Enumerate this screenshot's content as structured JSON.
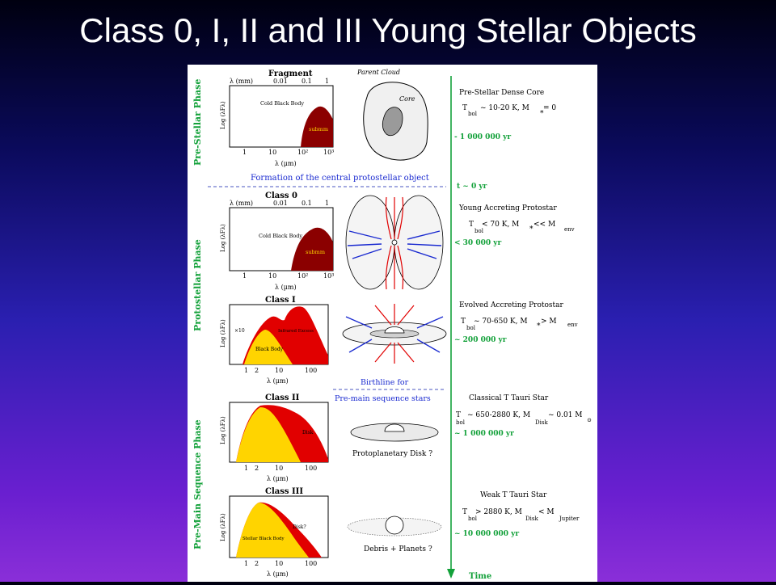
{
  "slide": {
    "title": "Class 0, I, II and III Young Stellar Objects"
  },
  "phases": {
    "pre_stellar": "Pre-Stellar Phase",
    "protostellar": "Protostellar Phase",
    "pre_main_sequence": "Pre-Main Sequence Phase"
  },
  "panels": {
    "fragment": {
      "title": "Fragment",
      "top_axis_label": "λ (mm)",
      "top_ticks": [
        "0.01",
        "0.1",
        "1"
      ],
      "y_label": "Log (λFλ)",
      "x_label": "λ (μm)",
      "x_ticks": [
        "1",
        "10",
        "10²",
        "10³"
      ],
      "body_label": "Cold Black Body",
      "fill_label": "submm"
    },
    "class0": {
      "title": "Class 0",
      "top_axis_label": "λ (mm)",
      "top_ticks": [
        "0.01",
        "0.1",
        "1"
      ],
      "y_label": "Log (λFλ)",
      "x_label": "λ (μm)",
      "x_ticks": [
        "1",
        "10",
        "10²",
        "10³"
      ],
      "body_label": "Cold Black Body",
      "fill_label": "submm"
    },
    "class1": {
      "title": "Class I",
      "y_label": "Log (λFλ)",
      "x_label": "λ (μm)",
      "x_ticks": [
        "1",
        "2",
        "10",
        "100"
      ],
      "scale_note": "×10",
      "excess_label": "Infrared Excess",
      "body_label": "Black Body"
    },
    "class2": {
      "title": "Class II",
      "y_label": "Log (λFλ)",
      "x_label": "λ (μm)",
      "x_ticks": [
        "1",
        "2",
        "10",
        "100"
      ],
      "disk_label": "Disk"
    },
    "class3": {
      "title": "Class III",
      "y_label": "Log (λFλ)",
      "x_label": "λ (μm)",
      "x_ticks": [
        "1",
        "2",
        "10",
        "100"
      ],
      "disk_label": "Disk?",
      "body_label": "Stellar Black Body"
    }
  },
  "sketches": {
    "parent_cloud": "Parent Cloud",
    "core": "Core",
    "protoplanetary": "Protoplanetary Disk ?",
    "debris": "Debris + Planets ?"
  },
  "transitions": {
    "formation": "Formation of the central protostellar object",
    "birthline_1": "Birthline for",
    "birthline_2": "Pre-main sequence stars"
  },
  "stages": {
    "s1": {
      "name": "Pre-Stellar Dense Core",
      "text": "T",
      "sub": "bol",
      "cond": "~ 10-20 K,  M",
      "sub2": "*",
      "tail": " = 0",
      "age": "- 1 000 000 yr"
    },
    "s2": {
      "name": "Young Accreting Protostar",
      "text": "T",
      "sub": "bol",
      "cond": "< 70 K,  M",
      "sub2": "*",
      "tail": " << M",
      "sub3": "env",
      "age": "< 30 000 yr",
      "t0": "t ~ 0 yr"
    },
    "s3": {
      "name": "Evolved Accreting Protostar",
      "text": "T",
      "sub": "bol",
      "cond": "~ 70-650 K,  M",
      "sub2": "*",
      "tail": " > M",
      "sub3": " env",
      "age": "~ 200 000 yr"
    },
    "s4": {
      "name": "Classical T Tauri Star",
      "text": "T",
      "sub": "bol",
      "cond": "~ 650-2880 K,  M",
      "sub2": "Disk",
      "tail": " ~ 0.01 M",
      "sub3": "⊙",
      "age": "~ 1 000 000 yr"
    },
    "s5": {
      "name": "Weak T Tauri Star",
      "text": "T",
      "sub": "bol",
      "cond": "> 2880 K,  M",
      "sub2": "Disk",
      "tail": " < M",
      "sub3": "Jupiter",
      "age": "~ 10 000 000 yr"
    }
  },
  "timeline": {
    "label": "Time"
  },
  "colors": {
    "green": "#13a13a",
    "darkred": "#8b0000",
    "red": "#e10000",
    "yellow": "#ffd400",
    "blue": "#1a2ad0",
    "dashed": "#4a55c0"
  }
}
